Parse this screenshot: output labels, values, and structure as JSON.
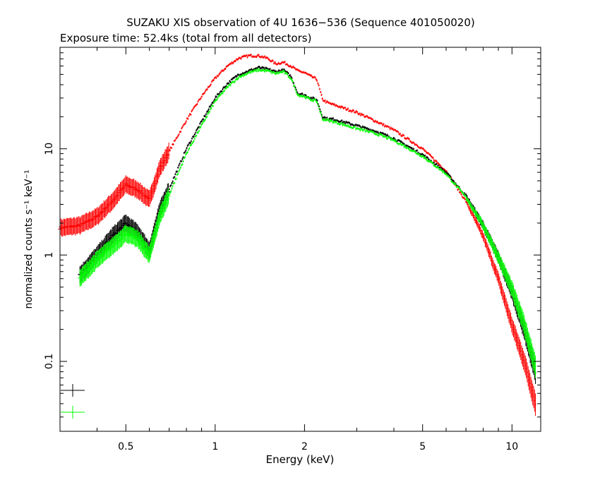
{
  "chart_data": {
    "type": "scatter",
    "title": "SUZAKU XIS observation of 4U 1636−536 (Sequence 401050020)",
    "subtitle": "Exposure time: 52.4ks (total from all detectors)",
    "xlabel": "Energy (keV)",
    "ylabel": "normalized counts s⁻¹ keV⁻¹",
    "x_scale": "log",
    "y_scale": "log",
    "xlim": [
      0.3,
      12.5
    ],
    "ylim": [
      0.022,
      90
    ],
    "x_ticks": [
      {
        "value": 0.5,
        "label": "0.5"
      },
      {
        "value": 1,
        "label": "1"
      },
      {
        "value": 2,
        "label": "2"
      },
      {
        "value": 5,
        "label": "5"
      },
      {
        "value": 10,
        "label": "10"
      }
    ],
    "y_ticks": [
      {
        "value": 0.1,
        "label": "0.1"
      },
      {
        "value": 1,
        "label": "1"
      },
      {
        "value": 10,
        "label": "10"
      }
    ],
    "grid": false,
    "legend_position": "bottom-left",
    "series": [
      {
        "color": "#ff0000",
        "x": [
          0.3,
          0.35,
          0.4,
          0.45,
          0.5,
          0.55,
          0.6,
          0.65,
          0.7,
          0.8,
          0.9,
          1.0,
          1.1,
          1.2,
          1.3,
          1.4,
          1.5,
          1.6,
          1.7,
          1.8,
          1.9,
          2.0,
          2.1,
          2.2,
          2.3,
          2.4,
          2.5,
          3.0,
          3.5,
          4.0,
          5.0,
          6.0,
          7.0,
          8.0,
          9.0,
          10.0,
          11.0,
          12.0
        ],
        "y": [
          1.8,
          1.9,
          2.3,
          3.2,
          4.6,
          4.1,
          3.3,
          6.5,
          9.5,
          18.5,
          31,
          46,
          60,
          71,
          75,
          75,
          71,
          63,
          65,
          60,
          54,
          52,
          48,
          45,
          29,
          27,
          26,
          22,
          18,
          15,
          10,
          6.2,
          3.2,
          1.5,
          0.6,
          0.22,
          0.1,
          0.04
        ]
      },
      {
        "color": "#000000",
        "x": [
          0.35,
          0.4,
          0.45,
          0.5,
          0.55,
          0.6,
          0.65,
          0.7,
          0.8,
          0.9,
          1.0,
          1.1,
          1.2,
          1.3,
          1.4,
          1.5,
          1.6,
          1.7,
          1.8,
          1.9,
          2.0,
          2.1,
          2.2,
          2.3,
          2.4,
          2.5,
          3.0,
          3.5,
          4.0,
          5.0,
          6.0,
          7.0,
          8.0,
          9.0,
          10.0,
          11.0,
          12.0
        ],
        "y": [
          0.65,
          1.0,
          1.5,
          2.0,
          1.6,
          1.1,
          2.6,
          4.2,
          10,
          18,
          30,
          41,
          50,
          54,
          58,
          56,
          53,
          55,
          48,
          33,
          32,
          30,
          29,
          20,
          19,
          19,
          16.5,
          14.5,
          12.5,
          8.8,
          6.0,
          3.6,
          1.9,
          0.95,
          0.45,
          0.2,
          0.08
        ]
      },
      {
        "color": "#00ff00",
        "x": [
          0.35,
          0.4,
          0.45,
          0.5,
          0.55,
          0.6,
          0.65,
          0.7,
          0.8,
          0.9,
          1.0,
          1.1,
          1.2,
          1.3,
          1.4,
          1.5,
          1.6,
          1.7,
          1.8,
          1.9,
          2.0,
          2.1,
          2.2,
          2.3,
          2.4,
          2.5,
          3.0,
          3.5,
          4.0,
          5.0,
          6.0,
          7.0,
          8.0,
          9.0,
          10.0,
          11.0,
          12.0
        ],
        "y": [
          0.6,
          0.9,
          1.2,
          1.6,
          1.4,
          1.0,
          2.3,
          3.7,
          9,
          16.5,
          28,
          38,
          47,
          52,
          55,
          54,
          51,
          53,
          46,
          32,
          31,
          29,
          28,
          19,
          18.5,
          18,
          15.5,
          13.8,
          12,
          8.5,
          5.8,
          3.5,
          1.9,
          0.95,
          0.48,
          0.22,
          0.09
        ]
      }
    ]
  }
}
